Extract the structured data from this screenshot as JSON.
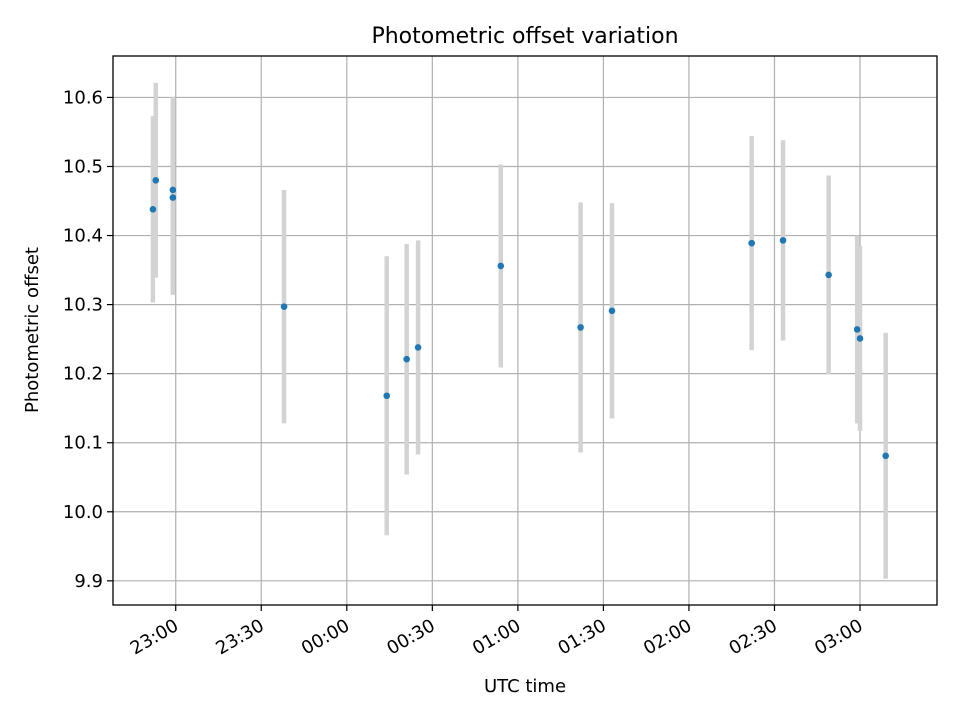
{
  "chart_data": {
    "type": "scatter",
    "title": "Photometric offset variation",
    "xlabel": "UTC time",
    "ylabel": "Photometric offset",
    "x_axis": {
      "type": "time",
      "range": [
        "22:38",
        "03:27"
      ],
      "ticks": [
        "23:00",
        "23:30",
        "00:00",
        "00:30",
        "01:00",
        "01:30",
        "02:00",
        "02:30",
        "03:00"
      ]
    },
    "y_axis": {
      "range": [
        9.865,
        10.66
      ],
      "ticks": [
        "9.9",
        "10.0",
        "10.1",
        "10.2",
        "10.3",
        "10.4",
        "10.5",
        "10.6"
      ]
    },
    "grid": true,
    "legend": "none",
    "colors": {
      "points": "#1f77b4",
      "errorbars": "#d3d3d3",
      "grid": "#b0b0b0"
    },
    "points": [
      {
        "x": "22:52",
        "y": 10.438,
        "err": 0.135
      },
      {
        "x": "22:53",
        "y": 10.48,
        "err": 0.141
      },
      {
        "x": "22:59",
        "y": 10.466,
        "err": 0.135
      },
      {
        "x": "22:59",
        "y": 10.455,
        "err": 0.141
      },
      {
        "x": "23:38",
        "y": 10.297,
        "err": 0.169
      },
      {
        "x": "00:14",
        "y": 10.168,
        "err": 0.202
      },
      {
        "x": "00:21",
        "y": 10.221,
        "err": 0.167
      },
      {
        "x": "00:25",
        "y": 10.238,
        "err": 0.155
      },
      {
        "x": "00:54",
        "y": 10.356,
        "err": 0.147
      },
      {
        "x": "01:22",
        "y": 10.267,
        "err": 0.181
      },
      {
        "x": "01:33",
        "y": 10.291,
        "err": 0.156
      },
      {
        "x": "02:22",
        "y": 10.389,
        "err": 0.155
      },
      {
        "x": "02:33",
        "y": 10.393,
        "err": 0.145
      },
      {
        "x": "02:49",
        "y": 10.343,
        "err": 0.144
      },
      {
        "x": "02:59",
        "y": 10.264,
        "err": 0.136
      },
      {
        "x": "03:00",
        "y": 10.251,
        "err": 0.134
      },
      {
        "x": "03:09",
        "y": 10.081,
        "err": 0.178
      }
    ]
  }
}
